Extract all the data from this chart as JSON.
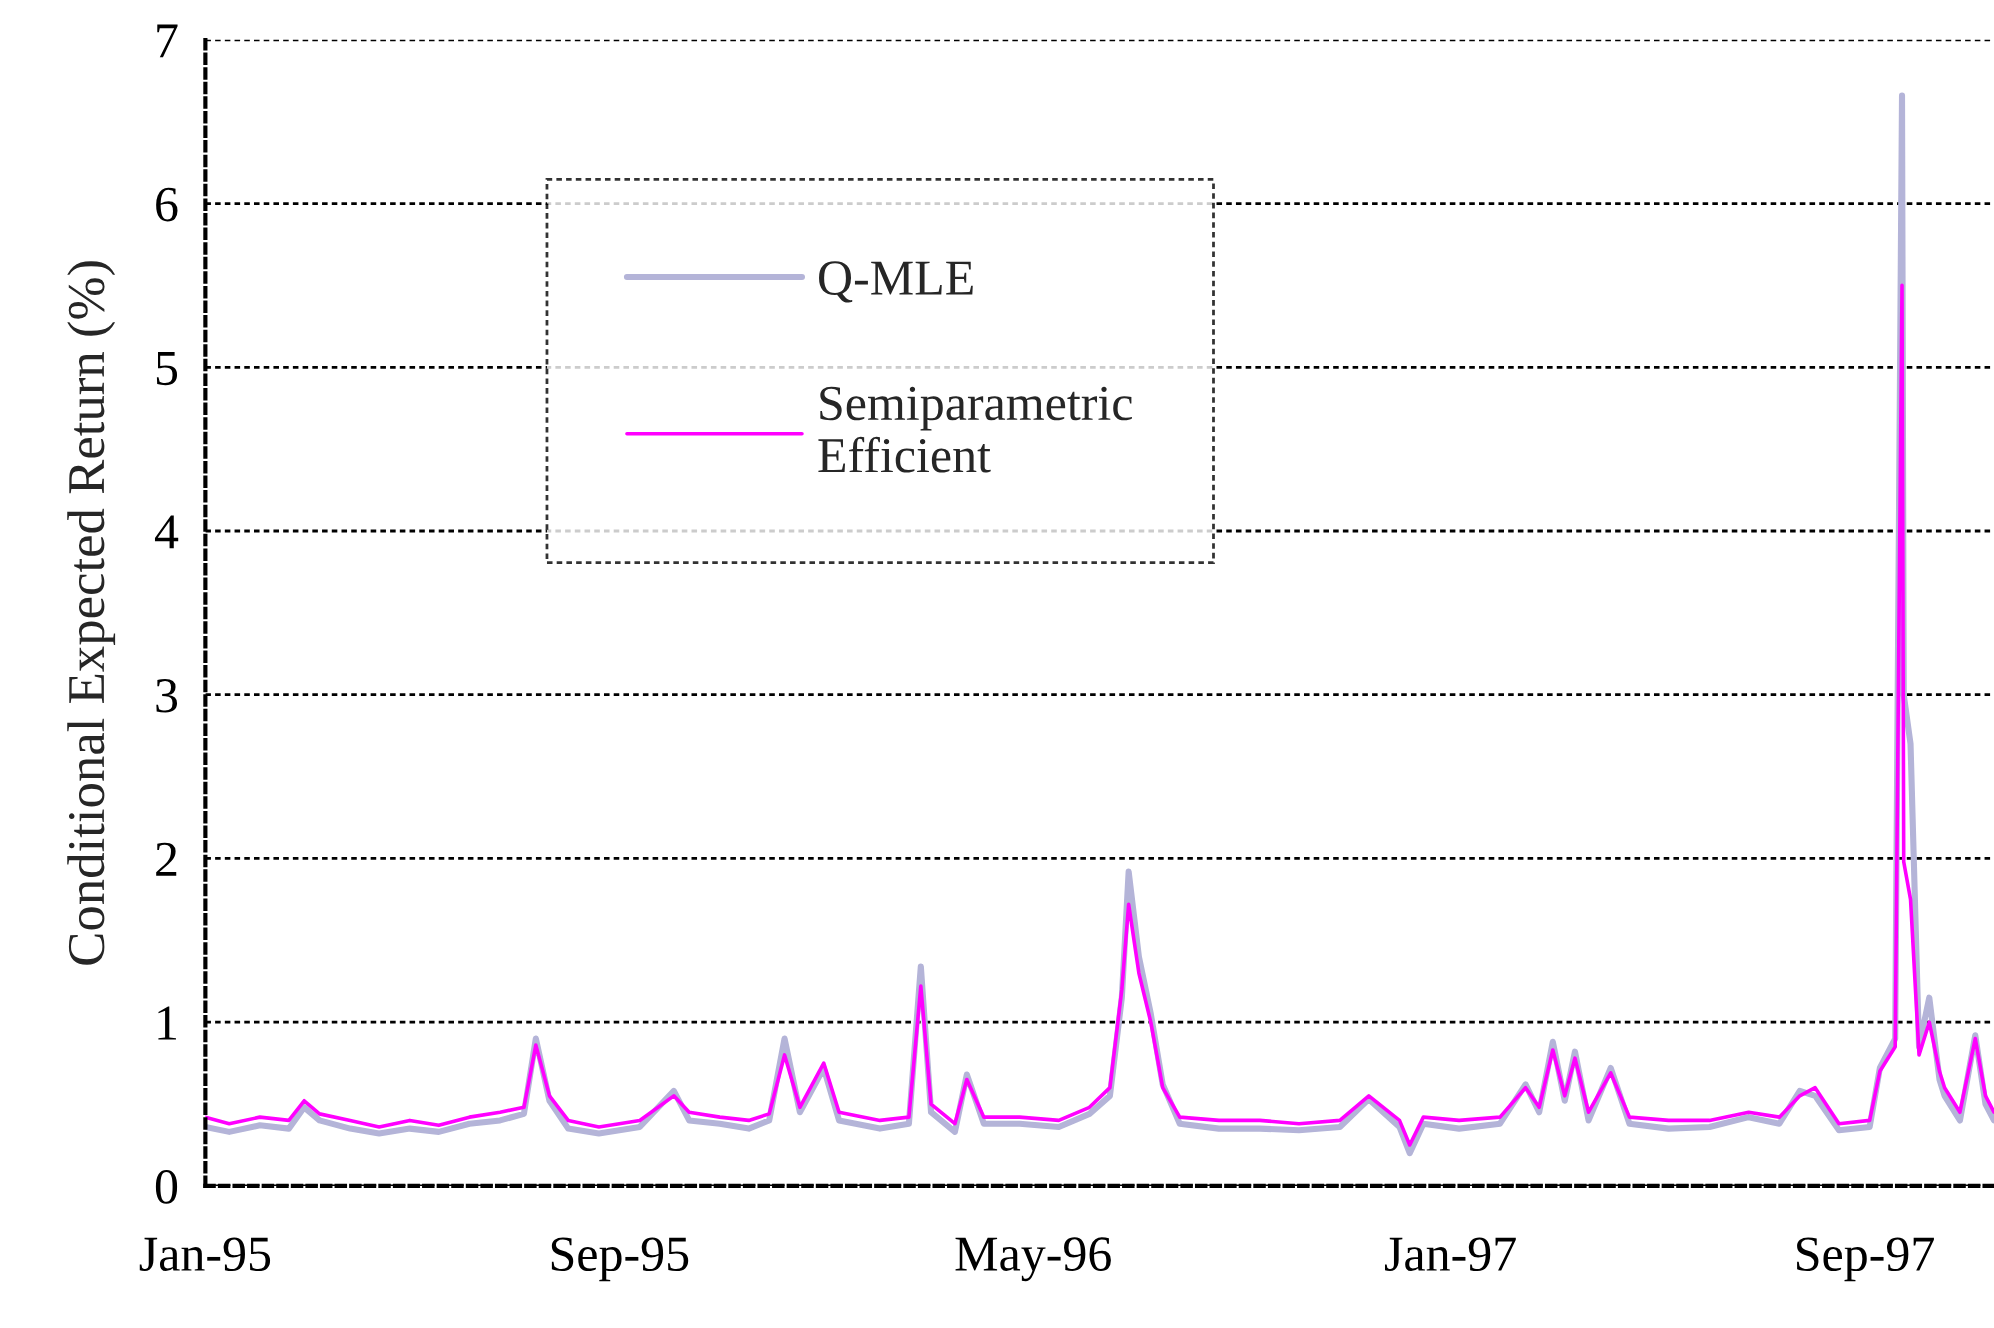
{
  "chart_data": {
    "type": "line",
    "ylabel": "Conditional Expected Return (%)",
    "x": [
      "1995-01-01",
      "1995-01-15",
      "1995-02-02",
      "1995-02-19",
      "1995-02-28",
      "1995-03-09",
      "1995-03-27",
      "1995-04-13",
      "1995-05-01",
      "1995-05-18",
      "1995-06-05",
      "1995-06-23",
      "1995-07-07",
      "1995-07-14",
      "1995-07-22",
      "1995-08-02",
      "1995-08-20",
      "1995-09-13",
      "1995-10-03",
      "1995-10-12",
      "1995-10-30",
      "1995-11-16",
      "1995-11-28",
      "1995-12-07",
      "1995-12-16",
      "1995-12-30",
      "1996-01-08",
      "1996-02-01",
      "1996-02-18",
      "1996-02-25",
      "1996-03-02",
      "1996-03-16",
      "1996-03-23",
      "1996-04-02",
      "1996-04-23",
      "1996-05-16",
      "1996-06-03",
      "1996-06-15",
      "1996-06-22",
      "1996-06-26",
      "1996-07-02",
      "1996-07-09",
      "1996-07-16",
      "1996-07-26",
      "1996-08-18",
      "1996-09-11",
      "1996-10-04",
      "1996-10-28",
      "1996-11-14",
      "1996-12-02",
      "1996-12-08",
      "1996-12-16",
      "1997-01-06",
      "1997-01-30",
      "1997-02-14",
      "1997-02-22",
      "1997-03-02",
      "1997-03-09",
      "1997-03-15",
      "1997-03-23",
      "1997-04-05",
      "1997-04-16",
      "1997-05-09",
      "1997-06-02",
      "1997-06-25",
      "1997-07-13",
      "1997-07-25",
      "1997-08-03",
      "1997-08-17",
      "1997-09-04",
      "1997-09-10",
      "1997-09-19",
      "1997-09-23",
      "1997-09-24",
      "1997-09-28",
      "1997-10-03",
      "1997-10-09",
      "1997-10-15",
      "1997-10-18",
      "1997-10-27",
      "1997-11-05",
      "1997-11-11",
      "1997-11-16"
    ],
    "series": [
      {
        "name": "Q-MLE",
        "color": "#b4b4d8",
        "values": [
          0.36,
          0.33,
          0.37,
          0.35,
          0.48,
          0.4,
          0.35,
          0.32,
          0.35,
          0.33,
          0.38,
          0.4,
          0.44,
          0.9,
          0.52,
          0.35,
          0.32,
          0.36,
          0.58,
          0.4,
          0.38,
          0.35,
          0.4,
          0.9,
          0.45,
          0.72,
          0.4,
          0.35,
          0.38,
          1.34,
          0.45,
          0.33,
          0.68,
          0.38,
          0.38,
          0.36,
          0.44,
          0.55,
          1.15,
          1.92,
          1.4,
          1.05,
          0.62,
          0.38,
          0.35,
          0.35,
          0.34,
          0.36,
          0.53,
          0.36,
          0.2,
          0.38,
          0.35,
          0.38,
          0.62,
          0.45,
          0.88,
          0.52,
          0.82,
          0.4,
          0.72,
          0.38,
          0.35,
          0.36,
          0.42,
          0.38,
          0.58,
          0.55,
          0.34,
          0.36,
          0.72,
          0.9,
          6.66,
          3.0,
          2.7,
          0.85,
          1.15,
          0.65,
          0.55,
          0.4,
          0.92,
          0.5,
          0.4
        ]
      },
      {
        "name": "Semiparametric\nEfficient",
        "color": "#ff00ff",
        "values": [
          0.42,
          0.38,
          0.42,
          0.4,
          0.52,
          0.44,
          0.4,
          0.36,
          0.4,
          0.37,
          0.42,
          0.45,
          0.48,
          0.86,
          0.55,
          0.4,
          0.36,
          0.4,
          0.55,
          0.45,
          0.42,
          0.4,
          0.44,
          0.8,
          0.48,
          0.75,
          0.45,
          0.4,
          0.42,
          1.22,
          0.5,
          0.38,
          0.65,
          0.42,
          0.42,
          0.4,
          0.48,
          0.6,
          1.2,
          1.72,
          1.3,
          1.0,
          0.6,
          0.42,
          0.4,
          0.4,
          0.38,
          0.4,
          0.55,
          0.4,
          0.25,
          0.42,
          0.4,
          0.42,
          0.6,
          0.48,
          0.83,
          0.55,
          0.78,
          0.45,
          0.69,
          0.42,
          0.4,
          0.4,
          0.45,
          0.42,
          0.55,
          0.6,
          0.38,
          0.4,
          0.7,
          0.85,
          5.5,
          1.98,
          1.75,
          0.8,
          1.0,
          0.7,
          0.6,
          0.45,
          0.9,
          0.55,
          0.45
        ]
      }
    ],
    "xlim": [
      "1995-01-01",
      "1997-11-16"
    ],
    "xticks": [
      {
        "value": "1995-01-01",
        "label": "Jan-95"
      },
      {
        "value": "1995-09-01",
        "label": "Sep-95"
      },
      {
        "value": "1996-05-01",
        "label": "May-96"
      },
      {
        "value": "1997-01-01",
        "label": "Jan-97"
      },
      {
        "value": "1997-09-01",
        "label": "Sep-97"
      }
    ],
    "ylim": [
      0,
      7
    ],
    "yticks": [
      0,
      1,
      2,
      3,
      4,
      5,
      6,
      7
    ],
    "grid": "y",
    "legend": "top left",
    "marker": "none",
    "line_style": "solid"
  }
}
